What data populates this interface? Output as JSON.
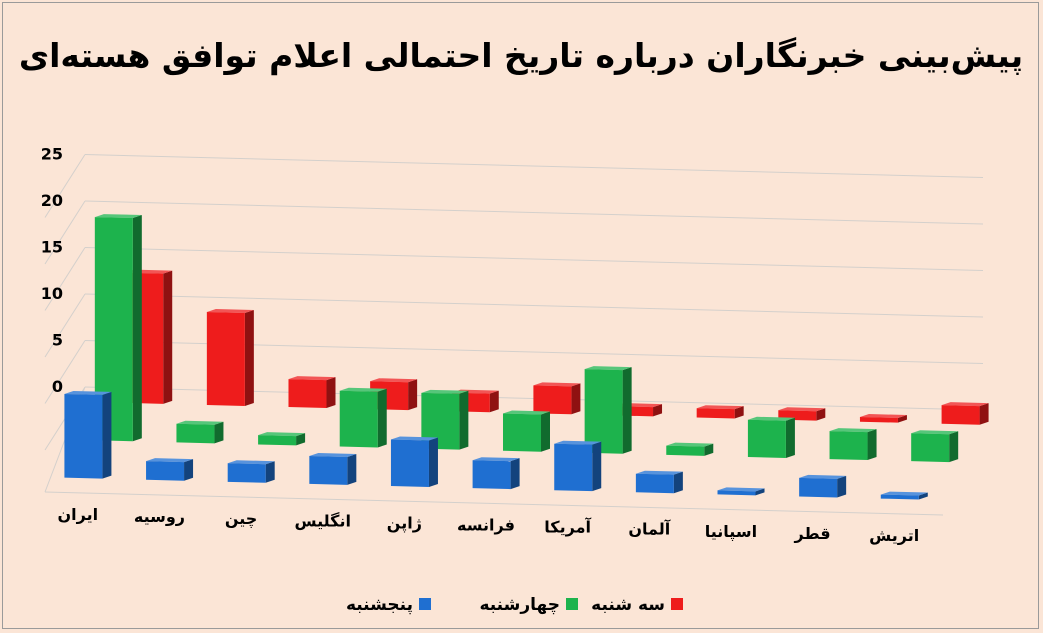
{
  "chart_data": {
    "type": "bar",
    "title": "پیش‌بینی خبرنگاران درباره تاریخ احتمالی اعلام توافق هسته‌ای",
    "categories": [
      "ایران",
      "روسیه",
      "چین",
      "انگلیس",
      "ژاپن",
      "فرانسه",
      "آمریکا",
      "آلمان",
      "اسپانیا",
      "قطر",
      "اتریش"
    ],
    "series": [
      {
        "name": "پنجشنبه",
        "color": "#1f6fd1",
        "values": [
          9,
          2,
          2,
          3,
          5,
          3,
          5,
          2,
          0,
          2,
          0
        ]
      },
      {
        "name": "چهارشنبه",
        "color": "#1db34d",
        "values": [
          24,
          2,
          1,
          6,
          6,
          4,
          9,
          1,
          4,
          3,
          3
        ]
      },
      {
        "name": "سه شنبه",
        "color": "#ee1c1c",
        "values": [
          14,
          10,
          3,
          3,
          2,
          3,
          1,
          1,
          1,
          0.5,
          2
        ]
      }
    ],
    "y_ticks": [
      "0",
      "5",
      "10",
      "15",
      "20",
      "25"
    ],
    "ylim": [
      0,
      25
    ],
    "grid": true,
    "legend_position": "bottom"
  }
}
